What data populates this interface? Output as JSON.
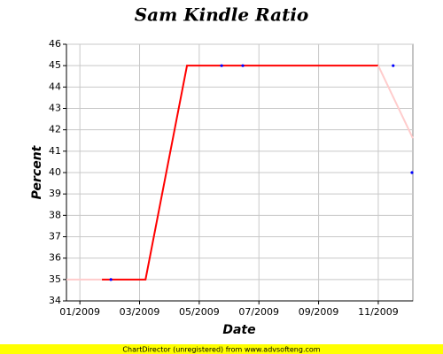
{
  "chart_data": {
    "type": "line",
    "title": "Sam Kindle Ratio",
    "xlabel": "Date",
    "ylabel": "Percent",
    "xlim": [
      -0.45,
      11.16
    ],
    "ylim": [
      34,
      46
    ],
    "xticks": [
      {
        "value": 0,
        "label": "01/2009"
      },
      {
        "value": 2,
        "label": "03/2009"
      },
      {
        "value": 4,
        "label": "05/2009"
      },
      {
        "value": 6,
        "label": "07/2009"
      },
      {
        "value": 8,
        "label": "09/2009"
      },
      {
        "value": 10,
        "label": "11/2009"
      }
    ],
    "yticks": [
      34,
      35,
      36,
      37,
      38,
      39,
      40,
      41,
      42,
      43,
      44,
      45,
      46
    ],
    "grid": true,
    "series": [
      {
        "color": "#ffcccc",
        "mode": "line",
        "x": [
          -0.45,
          0.74
        ],
        "values": [
          35,
          35
        ]
      },
      {
        "color": "#ff0000",
        "mode": "line",
        "x": [
          0.74,
          2.2,
          3.59,
          10.0
        ],
        "values": [
          35,
          35,
          45,
          45
        ]
      },
      {
        "color": "#ffcccc",
        "mode": "line",
        "x": [
          10.0,
          11.16
        ],
        "values": [
          45,
          41.6
        ]
      },
      {
        "color": "#0000ff",
        "mode": "markers",
        "x": [
          1.04,
          4.75,
          5.46,
          10.5,
          11.13
        ],
        "values": [
          35,
          45,
          45,
          45,
          40
        ]
      }
    ]
  },
  "footer": "ChartDirector (unregistered) from www.advsofteng.com"
}
